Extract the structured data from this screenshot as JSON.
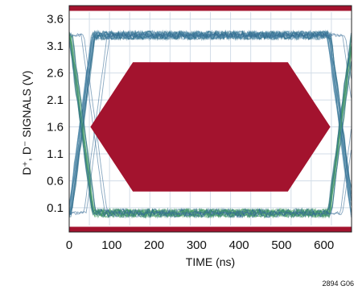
{
  "chart_data": {
    "type": "eye-diagram",
    "title": "",
    "xlabel": "TIME (ns)",
    "ylabel": "D⁺, D⁻ SIGNALS (V)",
    "xlim": [
      0,
      665
    ],
    "ylim": [
      -0.35,
      3.85
    ],
    "x_ticks": [
      "0",
      "100",
      "200",
      "300",
      "400",
      "500",
      "600"
    ],
    "y_ticks": [
      "3.6",
      "3.1",
      "2.6",
      "2.1",
      "1.6",
      "1.1",
      "0.6",
      "0.1"
    ],
    "grid": true,
    "upper_limit_v": 3.75,
    "lower_limit_v": -0.25,
    "signal_high_v": 3.3,
    "signal_low_v": 0.0,
    "eye_mask": {
      "points": [
        [
          50,
          1.6
        ],
        [
          150,
          2.8
        ],
        [
          515,
          2.8
        ],
        [
          615,
          1.6
        ],
        [
          515,
          0.4
        ],
        [
          150,
          0.4
        ]
      ]
    },
    "colors": {
      "mask": "#a3132e",
      "trace_dark": "#2b6b8a",
      "trace_light": "#48a064",
      "grid": "#d3dde8"
    }
  },
  "figure_id": "2894 G06"
}
